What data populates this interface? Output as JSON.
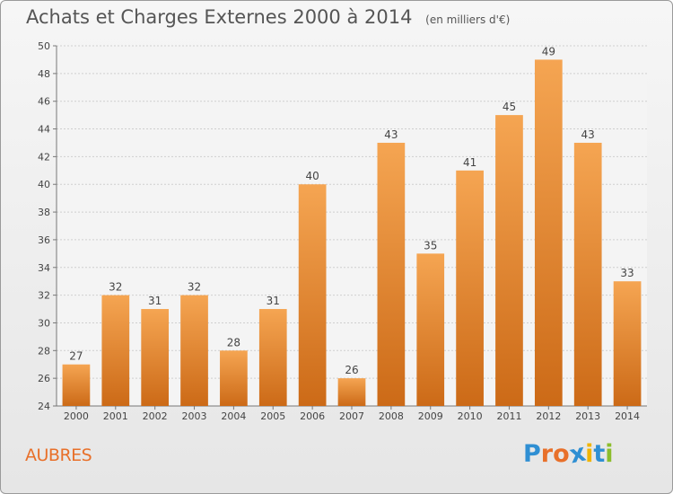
{
  "header": {
    "title": "Achats et Charges Externes 2000 à 2014",
    "subtitle": "(en milliers d'€)"
  },
  "footer": {
    "city": "AUBRES",
    "logo_letters": [
      "P",
      "r",
      "o",
      "x",
      "i",
      "t",
      "i"
    ],
    "logo_colors": [
      "#2f8fd3",
      "#e8702a",
      "#e8702a",
      "#2f8fd3",
      "#f0b400",
      "#2f8fd3",
      "#8cbd2c"
    ]
  },
  "chart_data": {
    "type": "bar",
    "title": "Achats et Charges Externes 2000 à 2014",
    "subtitle": "(en milliers d'€)",
    "categories": [
      "2000",
      "2001",
      "2002",
      "2003",
      "2004",
      "2005",
      "2006",
      "2007",
      "2008",
      "2009",
      "2010",
      "2011",
      "2012",
      "2013",
      "2014"
    ],
    "values": [
      27,
      32,
      31,
      32,
      28,
      31,
      40,
      26,
      43,
      35,
      41,
      45,
      49,
      43,
      33
    ],
    "ylim": [
      24,
      50
    ],
    "yticks": [
      24,
      26,
      28,
      30,
      32,
      34,
      36,
      38,
      40,
      42,
      44,
      46,
      48,
      50
    ],
    "grid": true,
    "bar_color_top": "#f5a552",
    "bar_color_bottom": "#cc6a17",
    "label_color": "#444444"
  }
}
